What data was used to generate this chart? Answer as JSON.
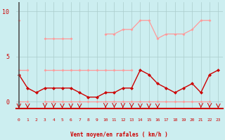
{
  "x": [
    0,
    1,
    2,
    3,
    4,
    5,
    6,
    7,
    8,
    9,
    10,
    11,
    12,
    13,
    14,
    15,
    16,
    17,
    18,
    19,
    20,
    21,
    22,
    23
  ],
  "background": "#cceef0",
  "grid_color": "#aacccc",
  "line_dark": "#cc0000",
  "line_light": "#ff9999",
  "xlabel": "Vent moyen/en rafales ( km/h )",
  "ylim": [
    -0.8,
    11.0
  ],
  "xlim": [
    -0.3,
    23.5
  ],
  "yticks": [
    0,
    5,
    10
  ],
  "xticks": [
    0,
    1,
    2,
    3,
    4,
    5,
    6,
    7,
    8,
    9,
    10,
    11,
    12,
    13,
    14,
    15,
    16,
    17,
    18,
    19,
    20,
    21,
    22,
    23
  ],
  "rafales_line": [
    9.0,
    null,
    null,
    7.0,
    7.0,
    7.0,
    7.0,
    null,
    null,
    null,
    7.5,
    7.5,
    8.0,
    8.0,
    9.0,
    9.0,
    7.0,
    7.5,
    7.5,
    7.5,
    8.0,
    9.0,
    9.0,
    null
  ],
  "moyen_light": [
    3.5,
    3.5,
    null,
    3.5,
    3.5,
    3.5,
    3.5,
    3.5,
    3.5,
    3.5,
    3.5,
    3.5,
    3.5,
    3.5,
    null,
    null,
    null,
    null,
    null,
    null,
    null,
    null,
    null,
    null
  ],
  "bottom_light": [
    0.0,
    0.0,
    null,
    0.0,
    0.0,
    0.0,
    0.0,
    0.0,
    0.0,
    0.0,
    0.0,
    0.0,
    0.0,
    0.0,
    0.0,
    0.0,
    0.0,
    0.0,
    0.0,
    0.0,
    0.0,
    0.0,
    0.0,
    null
  ],
  "vent_dark": [
    3.0,
    1.5,
    1.0,
    1.5,
    1.5,
    1.5,
    1.5,
    1.0,
    0.5,
    0.5,
    1.0,
    1.0,
    1.5,
    1.5,
    3.5,
    3.0,
    2.0,
    1.5,
    1.0,
    1.5,
    2.0,
    1.0,
    3.0,
    3.5
  ],
  "arrows": [
    0,
    1,
    3,
    4,
    5,
    6,
    7,
    10,
    11,
    12,
    13,
    14,
    15,
    16,
    21,
    22,
    23
  ],
  "arrow_angles": [
    270,
    270,
    225,
    225,
    270,
    270,
    270,
    225,
    225,
    225,
    225,
    270,
    270,
    270,
    225,
    225,
    270
  ]
}
